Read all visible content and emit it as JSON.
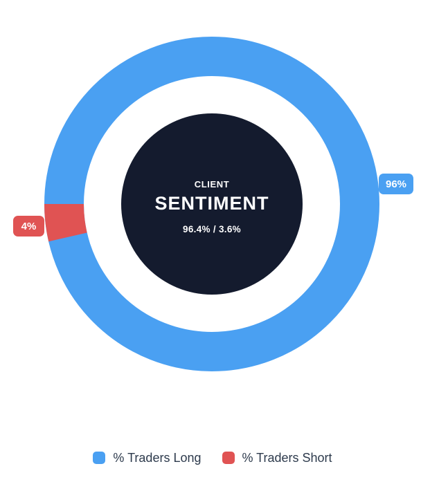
{
  "chart": {
    "center": {
      "top_label": "CLIENT",
      "title": "SENTIMENT",
      "values_text": "96.4% / 3.6%",
      "bg_color": "#141b2e"
    },
    "badges": {
      "long": "96%",
      "short": "4%"
    }
  },
  "legend": {
    "items": [
      {
        "label": "% Traders Long"
      },
      {
        "label": "% Traders Short"
      }
    ]
  },
  "chart_data": {
    "type": "pie",
    "subtype": "doughnut",
    "labels": [
      "% Traders Long",
      "% Traders Short"
    ],
    "values": [
      96.4,
      3.6
    ],
    "data_labels": [
      "96%",
      "4%"
    ],
    "colors": [
      "#4aa0f2",
      "#e05353"
    ],
    "title": "CLIENT SENTIMENT",
    "center_text": "96.4% / 3.6%",
    "start_position": "9-oclock",
    "direction": "clockwise",
    "legend_position": "bottom",
    "legend_text_color": "#2d3a4c",
    "center_disc_color": "#141b2e"
  }
}
